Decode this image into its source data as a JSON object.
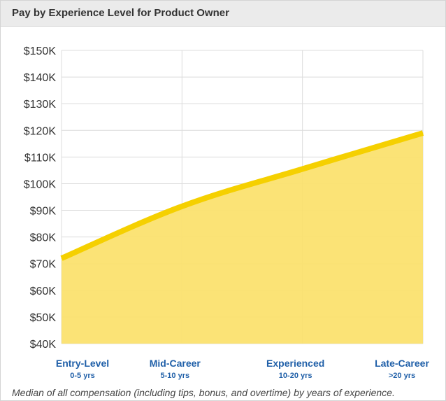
{
  "header": {
    "title": "Pay by Experience Level for Product Owner"
  },
  "caption": "Median of all compensation (including tips, bonus, and overtime) by years of experience.",
  "colors": {
    "line": "#f5d000",
    "area": "#fbe16a",
    "grid": "#dcdcdc",
    "label": "#1f5fa8",
    "header_bg": "#ebebeb"
  },
  "chart_data": {
    "type": "area",
    "title": "Pay by Experience Level for Product Owner",
    "categories": [
      "Entry-Level",
      "Mid-Career",
      "Experienced",
      "Late-Career"
    ],
    "category_sublabels": [
      "0-5 yrs",
      "5-10 yrs",
      "10-20 yrs",
      ">20 yrs"
    ],
    "values": [
      72000,
      91500,
      105500,
      119000
    ],
    "y_tick_labels": [
      "$40K",
      "$50K",
      "$60K",
      "$70K",
      "$80K",
      "$90K",
      "$100K",
      "$110K",
      "$120K",
      "$130K",
      "$140K",
      "$150K"
    ],
    "y_ticks": [
      40000,
      50000,
      60000,
      70000,
      80000,
      90000,
      100000,
      110000,
      120000,
      130000,
      140000,
      150000
    ],
    "ylim": [
      40000,
      150000
    ],
    "grid": true,
    "legend": "none"
  }
}
